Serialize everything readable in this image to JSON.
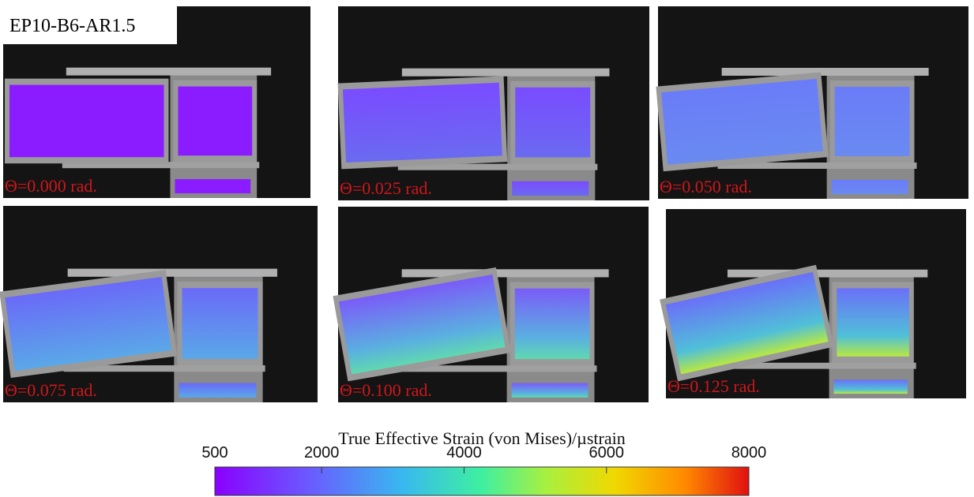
{
  "figure_label": "EP10-B6-AR1.5",
  "panels": [
    {
      "label": "Θ=0.000 rad."
    },
    {
      "label": "Θ=0.025 rad."
    },
    {
      "label": "Θ=0.050 rad."
    },
    {
      "label": "Θ=0.075 rad."
    },
    {
      "label": "Θ=0.100 rad."
    },
    {
      "label": "Θ=0.125 rad."
    }
  ],
  "colorbar": {
    "title": "True Effective Strain (von Mises)/µstrain",
    "range": [
      500,
      8000
    ],
    "ticks": [
      500,
      2000,
      4000,
      6000,
      8000
    ]
  }
}
